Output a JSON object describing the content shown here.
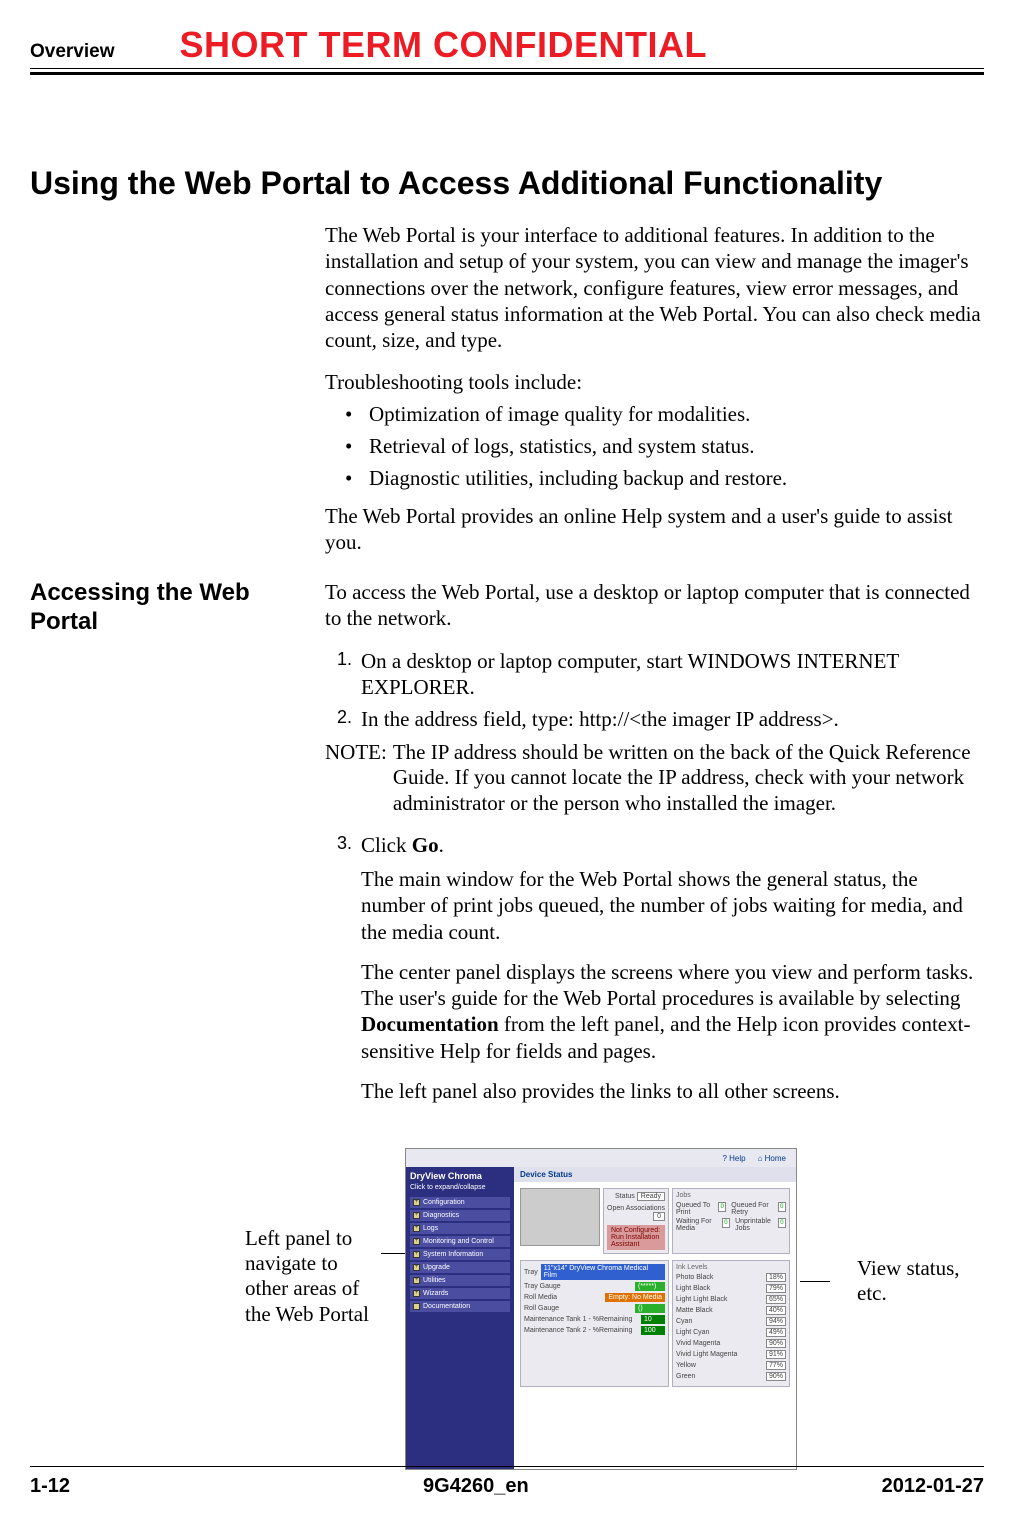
{
  "header": {
    "overview": "Overview",
    "watermark": "SHORT TERM CONFIDENTIAL"
  },
  "section_title": "Using the Web Portal to Access Additional Functionality",
  "intro_para": "The Web Portal is your interface to additional features. In addition to the installation and setup of your system, you can view and manage the imager's connections over the network, configure features, view error messages, and access general status information at the Web Portal. You can also check media count, size, and type.",
  "troubleshoot_lead": "Troubleshooting tools include:",
  "bullets": [
    "Optimization of image quality for modalities.",
    "Retrieval of logs, statistics, and system status.",
    "Diagnostic utilities, including backup and restore."
  ],
  "help_para": "The Web Portal provides an online Help system and a user's guide to assist you.",
  "side_heading": "Accessing the Web Portal",
  "access_intro": "To access the Web Portal, use a desktop or laptop computer that is connected to the network.",
  "steps": {
    "s1": "On a desktop or laptop computer, start WINDOWS INTERNET EXPLORER.",
    "s2": "In the address field, type: http://<the imager IP address>.",
    "s3_pre": "Click ",
    "s3_bold": "Go",
    "s3_post": "."
  },
  "note_label": "NOTE:",
  "note_body": "The IP address should be written on the back of the Quick Reference Guide. If you cannot locate the IP address, check with your network administrator or the person who installed the imager.",
  "result1": "The main window for the Web Portal shows the general status, the number of print jobs queued, the number of jobs waiting for media, and the media count.",
  "result2_pre": "The center panel displays the screens where you view and perform tasks. The user's guide for the Web Portal procedures is available by selecting ",
  "result2_bold": "Documentation",
  "result2_post": " from the left panel, and the Help icon provides context-sensitive Help for fields and pages.",
  "result3": "The left panel also provides the links to all other screens.",
  "annot_left": "Left panel to navigate to other areas of the Web Portal",
  "annot_right": "View status, etc.",
  "screenshot": {
    "help_link": "Help",
    "home_link": "Home",
    "sidebar_title": "DryView Chroma",
    "sidebar_sub": "Click to expand/collapse",
    "nav": [
      "Configuration",
      "Diagnostics",
      "Logs",
      "Monitoring and Control",
      "System Information",
      "Upgrade",
      "Utilities",
      "Wizards",
      "Documentation"
    ],
    "device_status": "Device Status",
    "status_label": "Status",
    "ready": "Ready",
    "open_assoc": "Open Associations",
    "assoc_val": "0",
    "jobs_hdr": "Jobs",
    "queued_print": "Queued To Print",
    "waiting_media": "Waiting For Media",
    "queued_retry": "Queued For Retry",
    "unprintable": "Unprintable Jobs",
    "val0": "0",
    "nc_line": "Not Configured: Run Installation Assistant",
    "tray": "Tray",
    "tray_val": "11\"x14\" DryView Chroma Medical Film",
    "tray_gauge": "Tray Gauge",
    "tray_gauge_val": "(*****)",
    "roll_media": "Roll Media",
    "roll_media_val": "Empty: No Media",
    "roll_gauge": "Roll Gauge",
    "roll_gauge_val": "()",
    "maint1": "Maintenance Tank 1 - %Remaining",
    "maint1_val": "10",
    "maint2": "Maintenance Tank 2 - %Remaining",
    "maint2_val": "100",
    "ink_hdr": "Ink Levels",
    "ink_rows": [
      {
        "label": "Photo Black",
        "pct": "18%"
      },
      {
        "label": "Light Black",
        "pct": "79%"
      },
      {
        "label": "Light Light Black",
        "pct": "65%"
      },
      {
        "label": "Matte Black",
        "pct": "40%"
      },
      {
        "label": "Cyan",
        "pct": "94%"
      },
      {
        "label": "Light Cyan",
        "pct": "49%"
      },
      {
        "label": "Vivid Magenta",
        "pct": "90%"
      },
      {
        "label": "Vivid Light Magenta",
        "pct": "91%"
      },
      {
        "label": "Yellow",
        "pct": "77%"
      },
      {
        "label": "Green",
        "pct": "90%"
      }
    ]
  },
  "footer": {
    "page": "1-12",
    "docid": "9G4260_en",
    "date": "2012-01-27"
  }
}
